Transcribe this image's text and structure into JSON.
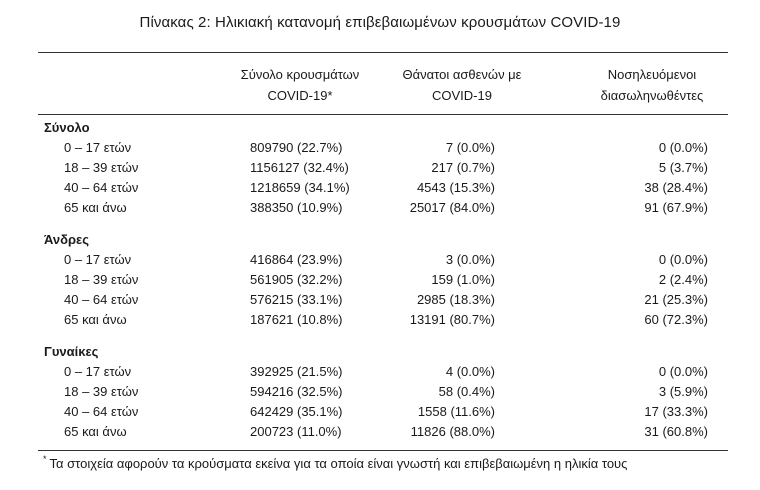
{
  "title": "Πίνακας 2: Ηλικιακή κατανομή επιβεβαιωμένων κρουσμάτων COVID-19",
  "headers": {
    "col1": [
      "Σύνολο κρουσμάτων",
      "COVID-19*"
    ],
    "col2": [
      "Θάνατοι ασθενών με",
      "COVID-19"
    ],
    "col3": [
      "Νοσηλευόμενοι",
      "διασωληνωθέντες"
    ]
  },
  "groups": [
    {
      "label": "Σύνολο",
      "rows": [
        {
          "age": "0 – 17 ετών",
          "cases": "809790 (22.7%)",
          "deaths": "7 (0.0%)",
          "intubated": "0 (0.0%)"
        },
        {
          "age": "18 – 39 ετών",
          "cases": "1156127 (32.4%)",
          "deaths": "217 (0.7%)",
          "intubated": "5 (3.7%)"
        },
        {
          "age": "40 – 64 ετών",
          "cases": "1218659 (34.1%)",
          "deaths": "4543 (15.3%)",
          "intubated": "38 (28.4%)"
        },
        {
          "age": "65 και άνω",
          "cases": "388350 (10.9%)",
          "deaths": "25017 (84.0%)",
          "intubated": "91 (67.9%)"
        }
      ]
    },
    {
      "label": "Άνδρες",
      "rows": [
        {
          "age": "0 – 17 ετών",
          "cases": "416864 (23.9%)",
          "deaths": "3 (0.0%)",
          "intubated": "0 (0.0%)"
        },
        {
          "age": "18 – 39 ετών",
          "cases": "561905 (32.2%)",
          "deaths": "159 (1.0%)",
          "intubated": "2 (2.4%)"
        },
        {
          "age": "40 – 64 ετών",
          "cases": "576215 (33.1%)",
          "deaths": "2985 (18.3%)",
          "intubated": "21 (25.3%)"
        },
        {
          "age": "65 και άνω",
          "cases": "187621 (10.8%)",
          "deaths": "13191 (80.7%)",
          "intubated": "60 (72.3%)"
        }
      ]
    },
    {
      "label": "Γυναίκες",
      "rows": [
        {
          "age": "0 – 17 ετών",
          "cases": "392925 (21.5%)",
          "deaths": "4 (0.0%)",
          "intubated": "0 (0.0%)"
        },
        {
          "age": "18 – 39 ετών",
          "cases": "594216 (32.5%)",
          "deaths": "58 (0.4%)",
          "intubated": "3 (5.9%)"
        },
        {
          "age": "40 – 64 ετών",
          "cases": "642429 (35.1%)",
          "deaths": "1558 (11.6%)",
          "intubated": "17 (33.3%)"
        },
        {
          "age": "65 και άνω",
          "cases": "200723 (11.0%)",
          "deaths": "11826 (88.0%)",
          "intubated": "31 (60.8%)"
        }
      ]
    }
  ],
  "footnote": {
    "marker": "*",
    "text": "Τα στοιχεία αφορούν τα κρούσματα εκείνα για τα οποία είναι γνωστή και επιβεβαιωμένη η ηλικία τους"
  }
}
